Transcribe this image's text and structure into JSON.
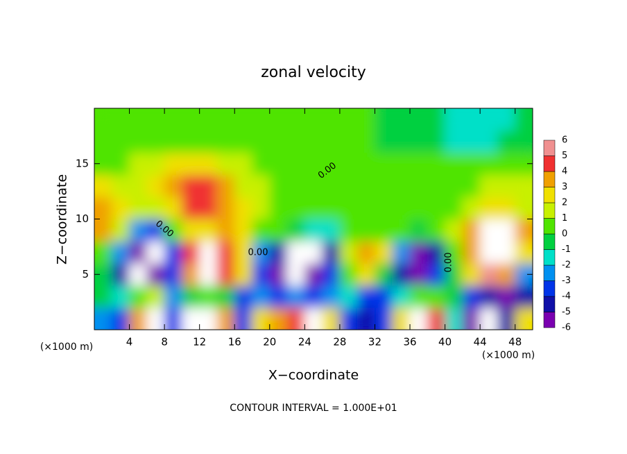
{
  "chart_data": {
    "type": "contour",
    "title": "zonal velocity",
    "x_label": "X−coordinate",
    "y_label": "Z−coordinate",
    "x_unit": "(×1000 m)",
    "footer": "CONTOUR INTERVAL = 1.000E+01",
    "contour_label": "0.00",
    "xlim": [
      0,
      50
    ],
    "ylim": [
      0,
      20
    ],
    "xticks": [
      4,
      8,
      12,
      16,
      20,
      24,
      28,
      32,
      36,
      40,
      44,
      48
    ],
    "yticks": [
      5,
      10,
      15
    ],
    "x": [
      1,
      3,
      5,
      7,
      9,
      11,
      13,
      15,
      17,
      19,
      21,
      23,
      25,
      27,
      29,
      31,
      33,
      35,
      37,
      39,
      41,
      43,
      45,
      47,
      49
    ],
    "y": [
      1,
      3,
      5,
      7,
      9,
      11,
      13,
      15,
      17,
      19
    ],
    "z": [
      [
        -2,
        -3,
        4,
        7,
        -3,
        7,
        7,
        4,
        -3,
        3,
        4,
        5,
        7,
        3,
        -3,
        -4,
        -3,
        3,
        7,
        5,
        -1,
        -5,
        -7,
        -4,
        3
      ],
      [
        0,
        -1,
        1,
        2,
        -2,
        0,
        1,
        0,
        -3,
        -2,
        -3,
        -2,
        -3,
        -2,
        -1,
        -3,
        -3,
        -1,
        1,
        0.5,
        -0.5,
        -3,
        -4,
        -5,
        -4
      ],
      [
        0,
        -4,
        -7,
        -5,
        -3,
        4,
        7,
        5,
        3,
        -3,
        -5,
        -7,
        -6,
        -3,
        1,
        3,
        0,
        -4,
        -6,
        -3,
        0,
        3,
        6,
        4,
        -2
      ],
      [
        1,
        -2,
        -5,
        -7,
        -3,
        5,
        7,
        5,
        3,
        -2,
        -4,
        -7,
        -7,
        -4,
        2,
        4,
        3,
        -2,
        -5,
        -4,
        1,
        4,
        7,
        7,
        3
      ],
      [
        4,
        1.5,
        -2,
        -3,
        0.5,
        2.5,
        3,
        3.5,
        2.5,
        1,
        0.5,
        0,
        -1,
        -1,
        0.5,
        0.5,
        0.5,
        0.5,
        0,
        0.5,
        1.5,
        4,
        7,
        7,
        4
      ],
      [
        3.5,
        2.5,
        1.5,
        2,
        3,
        4.5,
        4.5,
        4,
        3,
        1.5,
        1,
        0.5,
        0.5,
        0.5,
        0.5,
        0.5,
        0.5,
        0.5,
        0.5,
        0.5,
        1,
        2,
        3,
        3,
        2
      ],
      [
        2.5,
        2,
        1.5,
        2.5,
        3.5,
        4.5,
        4.5,
        3.5,
        2,
        1.5,
        1,
        0.5,
        0.5,
        0.5,
        0.5,
        0.5,
        0.5,
        0.5,
        0.5,
        0.5,
        0.5,
        1,
        1.5,
        1.5,
        1.5
      ],
      [
        0.5,
        1,
        1.5,
        2,
        2.5,
        3,
        2.5,
        2,
        1.5,
        1,
        0.5,
        0.5,
        0.5,
        0.5,
        0.5,
        0.5,
        0.5,
        0.5,
        0.5,
        0.5,
        0.5,
        0.5,
        0.5,
        0.5,
        0.5
      ],
      [
        0.5,
        0.5,
        1,
        1,
        1,
        1,
        1,
        0.5,
        0.5,
        0.5,
        0.5,
        0.5,
        0.5,
        0.5,
        0.5,
        0.5,
        0,
        0,
        -0.5,
        -0.5,
        -1,
        -1,
        -1,
        -0.5,
        -0.5
      ],
      [
        0.5,
        0.5,
        0.5,
        0.5,
        0.5,
        0.5,
        0.5,
        0.5,
        0.5,
        0.5,
        0.5,
        0.5,
        0.5,
        0.5,
        0.5,
        0.5,
        0,
        0,
        0,
        -0.5,
        -1,
        -1.5,
        -1.5,
        -1,
        -0.5
      ]
    ],
    "colorbar": {
      "ticks": [
        -6,
        -5,
        -4,
        -3,
        -2,
        -1,
        0,
        1,
        2,
        3,
        4,
        5,
        6
      ],
      "colors": [
        "#7a00b0",
        "#1010a8",
        "#0034e8",
        "#0090f0",
        "#00e0c8",
        "#00d040",
        "#50e400",
        "#c8f000",
        "#f0e000",
        "#f0a000",
        "#f03030",
        "#f09090"
      ],
      "out_of_range_color": "#ffffff"
    }
  }
}
